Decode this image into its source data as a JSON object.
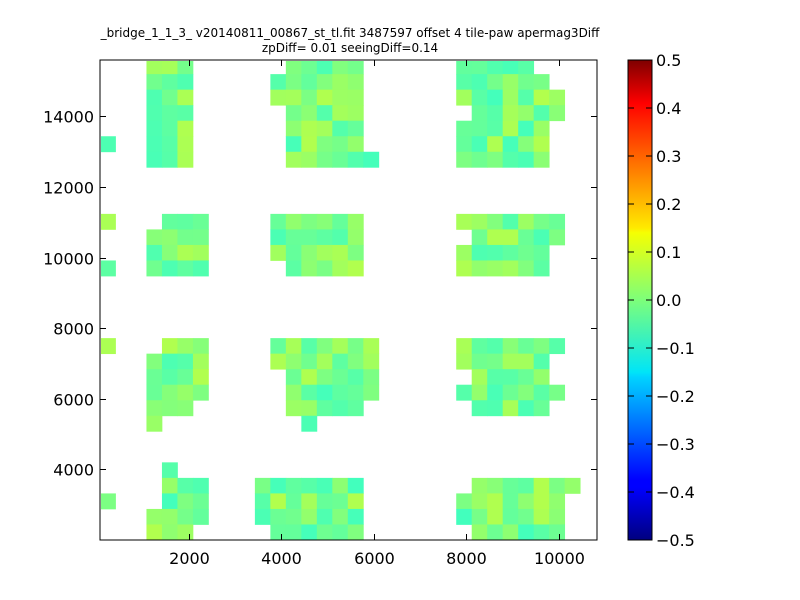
{
  "chart_data": {
    "type": "heatmap",
    "title_line1": "_bridge_1_1_3_ v20140811_00867_st_tl.fit 3487597 offset 4 tile-paw apermag3Diff",
    "title_line2": "zpDiff= 0.01 seeingDiff=0.14",
    "xlabel": "",
    "ylabel": "",
    "xlim": [
      80,
      10830
    ],
    "ylim": [
      2000,
      15600
    ],
    "x_ticks": [
      2000,
      4000,
      6000,
      8000,
      10000
    ],
    "y_ticks": [
      4000,
      6000,
      8000,
      10000,
      12000,
      14000
    ],
    "colorbar": {
      "range": [
        -0.5,
        0.5
      ],
      "ticks": [
        -0.5,
        -0.4,
        -0.3,
        -0.2,
        -0.1,
        0.0,
        0.1,
        0.2,
        0.3,
        0.4,
        0.5
      ],
      "tick_labels": [
        "−0.5",
        "−0.4",
        "−0.3",
        "−0.2",
        "−0.1",
        "0.0",
        "0.1",
        "0.2",
        "0.3",
        "0.4",
        "0.5"
      ],
      "colormap": "jet"
    },
    "cell_size": [
      335,
      440
    ],
    "x_start": 80,
    "y_start": 2000,
    "grid": false,
    "rows": [
      "   ...      .....      .....     ...  .     ",
      "   ...      .....      .....     ...  .     ",
      "   ...     ......      ......    ... ...    ",
      "   ...     ......      .......   .......    ",
      "   ...      .....       ......   .......    ",
      "   ...      .....      ......    .......    ",
      ".  ...      .....      ......    .......    ",
      "   ...      ......     ......     ......    ",
      "                                            ",
      "                                            ",
      "                                            ",
      ".   ...    ......      .......   .......    ",
      "   ....    ......       ......    ......    ",
      "   ....    ......      ......    .......    ",
      ".  ....     .....      ......    .......    ",
      "                                            ",
      "                                            ",
      "                                            ",
      "                                            ",
      ".   ...    .......     .......   .......    ",
      "   ....    .......     ......    .......    ",
      "   ....     ......      .....    .......    ",
      "   ....     ......     .......   .......    ",
      "   ...      .....       .....    .......    ",
      "   .         .                              ",
      "                                            ",
      "                                            ",
      "    .                                       ",
      "    ...   .......       .......   .......   ",
      ".   ...   .......      .......   .......    ",
      "   ....   .......      .......   .......    ",
      "   ...     ......       ......    ......    "
    ],
    "value_min": -0.06,
    "value_max": 0.05
  }
}
